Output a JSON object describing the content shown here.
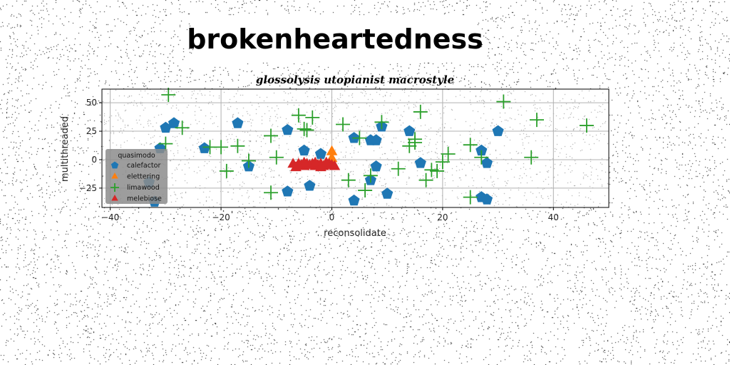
{
  "chart_data": {
    "type": "scatter",
    "title": "brokenheartedness",
    "subtitle": "glossolysis utopianist macrostyle",
    "xlabel": "reconsolidate",
    "ylabel": "multithreaded",
    "xlim": [
      -41.5,
      50
    ],
    "ylim": [
      -42,
      62
    ],
    "xticks": [
      -40,
      -20,
      0,
      20,
      40
    ],
    "yticks": [
      -25,
      0,
      25,
      50
    ],
    "grid": true,
    "legend": {
      "title": "quasimodo",
      "placement": "lower-left"
    },
    "background_noise": true,
    "series": [
      {
        "name": "calefactor",
        "marker": "pentagon",
        "color": "#1f77b4",
        "points": [
          [
            -30,
            28
          ],
          [
            -28.5,
            32
          ],
          [
            -23,
            10
          ],
          [
            -17,
            32
          ],
          [
            -15,
            -6
          ],
          [
            -31,
            10
          ],
          [
            -33,
            -20
          ],
          [
            -32,
            -37
          ],
          [
            -8,
            26
          ],
          [
            -8,
            -28
          ],
          [
            -5,
            8
          ],
          [
            -4,
            -23
          ],
          [
            -2,
            5
          ],
          [
            4,
            19
          ],
          [
            4,
            -36
          ],
          [
            7,
            17
          ],
          [
            8,
            17
          ],
          [
            7,
            -18
          ],
          [
            8,
            -6
          ],
          [
            9,
            29
          ],
          [
            10,
            -30
          ],
          [
            14,
            25
          ],
          [
            16,
            -3
          ],
          [
            27,
            8
          ],
          [
            28,
            -3
          ],
          [
            27,
            -33
          ],
          [
            28,
            -35
          ],
          [
            30,
            25
          ]
        ]
      },
      {
        "name": "elettering",
        "marker": "triangle",
        "color": "#ff7f0e",
        "points": [
          [
            0,
            7
          ],
          [
            0,
            1
          ],
          [
            0,
            -2
          ],
          [
            -1,
            -3
          ],
          [
            -2,
            -4
          ]
        ]
      },
      {
        "name": "limawood",
        "marker": "plus",
        "color": "#2ca02c",
        "points": [
          [
            -29.5,
            57
          ],
          [
            -30,
            14
          ],
          [
            -27,
            28
          ],
          [
            -22,
            11
          ],
          [
            -20,
            11
          ],
          [
            -19,
            -10
          ],
          [
            -17,
            12
          ],
          [
            -15,
            -1
          ],
          [
            -11,
            21
          ],
          [
            -11,
            -29
          ],
          [
            -10,
            2
          ],
          [
            -6,
            39
          ],
          [
            -5,
            27
          ],
          [
            -4.5,
            26
          ],
          [
            -3.5,
            37
          ],
          [
            2,
            31
          ],
          [
            3,
            -18
          ],
          [
            5,
            19
          ],
          [
            6,
            -27
          ],
          [
            7,
            -14
          ],
          [
            9,
            33
          ],
          [
            12,
            -8
          ],
          [
            14,
            12
          ],
          [
            15,
            15
          ],
          [
            15,
            18
          ],
          [
            16,
            42
          ],
          [
            17,
            -18
          ],
          [
            18,
            -9
          ],
          [
            19,
            -10
          ],
          [
            20,
            -2
          ],
          [
            21,
            5
          ],
          [
            25,
            -33
          ],
          [
            25,
            13
          ],
          [
            27,
            2
          ],
          [
            31,
            51
          ],
          [
            36,
            2
          ],
          [
            37,
            35
          ],
          [
            46,
            30
          ]
        ]
      },
      {
        "name": "melebiose",
        "marker": "triangle",
        "color": "#d62728",
        "points": [
          [
            -7,
            -4
          ],
          [
            -6.5,
            -7
          ],
          [
            -6,
            -4
          ],
          [
            -5.5,
            -5
          ],
          [
            -5,
            -6
          ],
          [
            -4.5,
            -4
          ],
          [
            -4,
            -5
          ],
          [
            -3.5,
            -4
          ],
          [
            -3,
            -6
          ],
          [
            -2.5,
            -5
          ],
          [
            -2,
            -4
          ],
          [
            -1.5,
            -6
          ],
          [
            -1,
            -5
          ],
          [
            -0.5,
            -4
          ],
          [
            0,
            -5
          ],
          [
            0.5,
            -6
          ],
          [
            -5,
            -3
          ],
          [
            -3,
            -3
          ],
          [
            -1,
            -3
          ],
          [
            -6,
            -6
          ],
          [
            -2,
            -7
          ]
        ]
      }
    ]
  }
}
